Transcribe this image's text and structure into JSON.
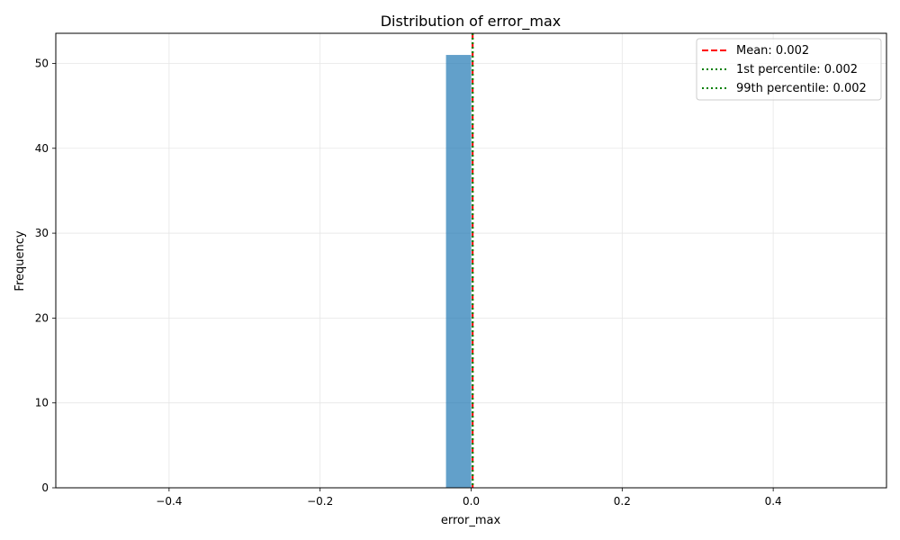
{
  "chart_data": {
    "type": "bar",
    "title": "Distribution of error_max",
    "xlabel": "error_max",
    "ylabel": "Frequency",
    "xlim": [
      -0.55,
      0.55
    ],
    "ylim": [
      0,
      53.55
    ],
    "xticks": [
      -0.4,
      -0.2,
      0.0,
      0.2,
      0.4
    ],
    "xtick_labels": [
      "−0.4",
      "−0.2",
      "0.0",
      "0.2",
      "0.4"
    ],
    "yticks": [
      0,
      10,
      20,
      30,
      40,
      50
    ],
    "ytick_labels": [
      "0",
      "10",
      "20",
      "30",
      "40",
      "50"
    ],
    "grid": true,
    "bars": [
      {
        "x0": -0.0333,
        "x1": 0.0,
        "value": 51
      }
    ],
    "bar_color": "#1f77b4",
    "bar_opacity": 0.7,
    "lines": [
      {
        "name": "Mean: 0.002",
        "x": 0.002,
        "color": "#ff0000",
        "style": "dashed"
      },
      {
        "name": "1st percentile: 0.002",
        "x": 0.002,
        "color": "#008000",
        "style": "dotted"
      },
      {
        "name": "99th percentile: 0.002",
        "x": 0.002,
        "color": "#008000",
        "style": "dotted"
      }
    ],
    "legend_position": "top-right"
  }
}
